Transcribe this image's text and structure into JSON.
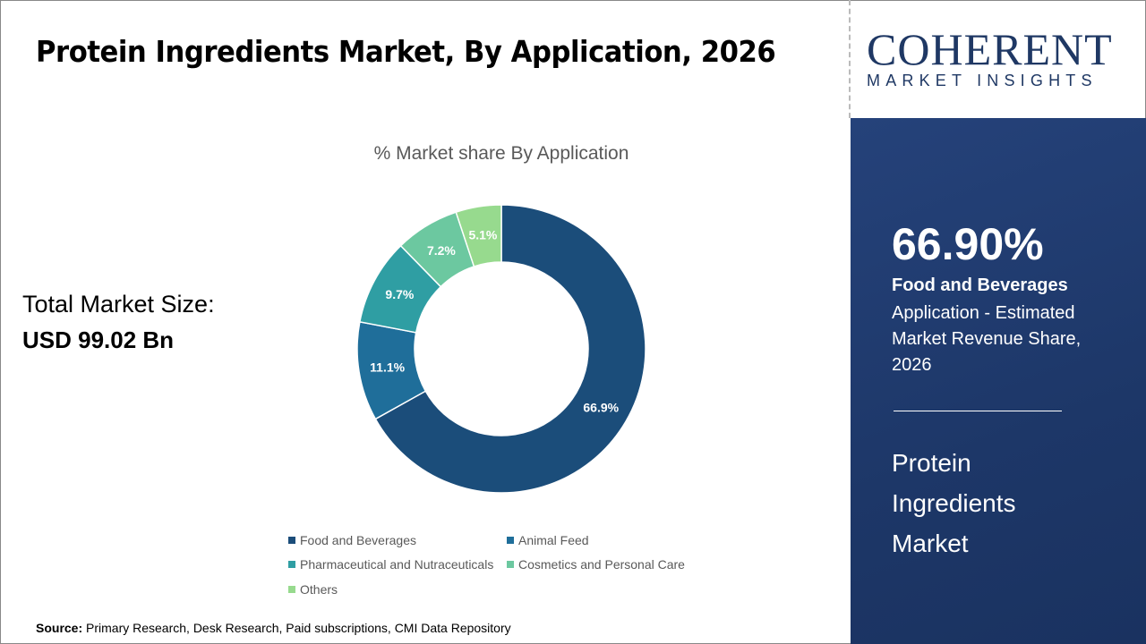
{
  "title": "Protein Ingredients Market, By Application, 2026",
  "total": {
    "label": "Total Market Size:",
    "value": "USD 99.02 Bn"
  },
  "chart_data": {
    "type": "donut",
    "title": "% Market share By Application",
    "categories": [
      "Food and Beverages",
      "Animal Feed",
      "Pharmaceutical and Nutraceuticals",
      "Cosmetics and Personal Care",
      "Others"
    ],
    "values": [
      66.9,
      11.1,
      9.7,
      7.2,
      5.1
    ],
    "labels": [
      "66.9%",
      "11.1%",
      "9.7%",
      "7.2%",
      "5.1%"
    ],
    "colors": [
      "#1b4d7a",
      "#1f6e9a",
      "#2f9ea3",
      "#6cc8a0",
      "#97da8e"
    ],
    "legend_position": "bottom"
  },
  "source": {
    "label": "Source:",
    "text": " Primary Research, Desk Research, Paid subscriptions, CMI Data Repository"
  },
  "logo": {
    "top": "COHERENT",
    "bottom": "MARKET INSIGHTS"
  },
  "panel": {
    "percent": "66.90%",
    "segment": "Food and Beverages",
    "description": "Application - Estimated Market Revenue Share, 2026",
    "market": "Protein Ingredients Market"
  }
}
